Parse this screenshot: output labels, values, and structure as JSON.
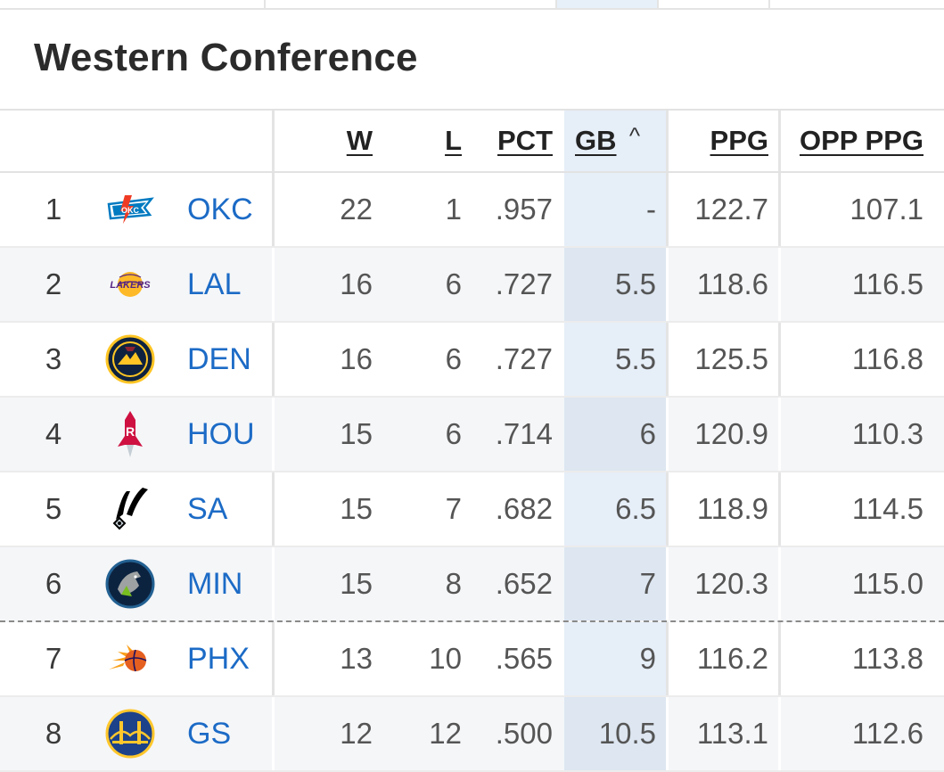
{
  "conference": {
    "title": "Western Conference"
  },
  "columns": {
    "w": "W",
    "l": "L",
    "pct": "PCT",
    "gb": "GB",
    "ppg": "PPG",
    "opp_ppg": "OPP PPG",
    "gb_sort_icon": "caret-up-icon"
  },
  "teams": [
    {
      "rank": "1",
      "abbr": "OKC",
      "logo": "thunder-logo",
      "w": "22",
      "l": "1",
      "pct": ".957",
      "gb": "-",
      "ppg": "122.7",
      "opp_ppg": "107.1"
    },
    {
      "rank": "2",
      "abbr": "LAL",
      "logo": "lakers-logo",
      "w": "16",
      "l": "6",
      "pct": ".727",
      "gb": "5.5",
      "ppg": "118.6",
      "opp_ppg": "116.5"
    },
    {
      "rank": "3",
      "abbr": "DEN",
      "logo": "nuggets-logo",
      "w": "16",
      "l": "6",
      "pct": ".727",
      "gb": "5.5",
      "ppg": "125.5",
      "opp_ppg": "116.8"
    },
    {
      "rank": "4",
      "abbr": "HOU",
      "logo": "rockets-logo",
      "w": "15",
      "l": "6",
      "pct": ".714",
      "gb": "6",
      "ppg": "120.9",
      "opp_ppg": "110.3"
    },
    {
      "rank": "5",
      "abbr": "SA",
      "logo": "spurs-logo",
      "w": "15",
      "l": "7",
      "pct": ".682",
      "gb": "6.5",
      "ppg": "118.9",
      "opp_ppg": "114.5"
    },
    {
      "rank": "6",
      "abbr": "MIN",
      "logo": "timberwolves-logo",
      "w": "15",
      "l": "8",
      "pct": ".652",
      "gb": "7",
      "ppg": "120.3",
      "opp_ppg": "115.0"
    },
    {
      "rank": "7",
      "abbr": "PHX",
      "logo": "suns-logo",
      "w": "13",
      "l": "10",
      "pct": ".565",
      "gb": "9",
      "ppg": "116.2",
      "opp_ppg": "113.8"
    },
    {
      "rank": "8",
      "abbr": "GS",
      "logo": "warriors-logo",
      "w": "12",
      "l": "12",
      "pct": ".500",
      "gb": "10.5",
      "ppg": "113.1",
      "opp_ppg": "112.6"
    }
  ],
  "colors": {
    "link": "#1c6bc6",
    "sort_highlight": "#e6eef8",
    "okc": "#007ac1",
    "lal": "#552583",
    "den": "#0e2240",
    "hou": "#ce1141",
    "sa": "#000000",
    "min": "#0c2340",
    "phx": "#e56020",
    "gs": "#1d428a"
  }
}
